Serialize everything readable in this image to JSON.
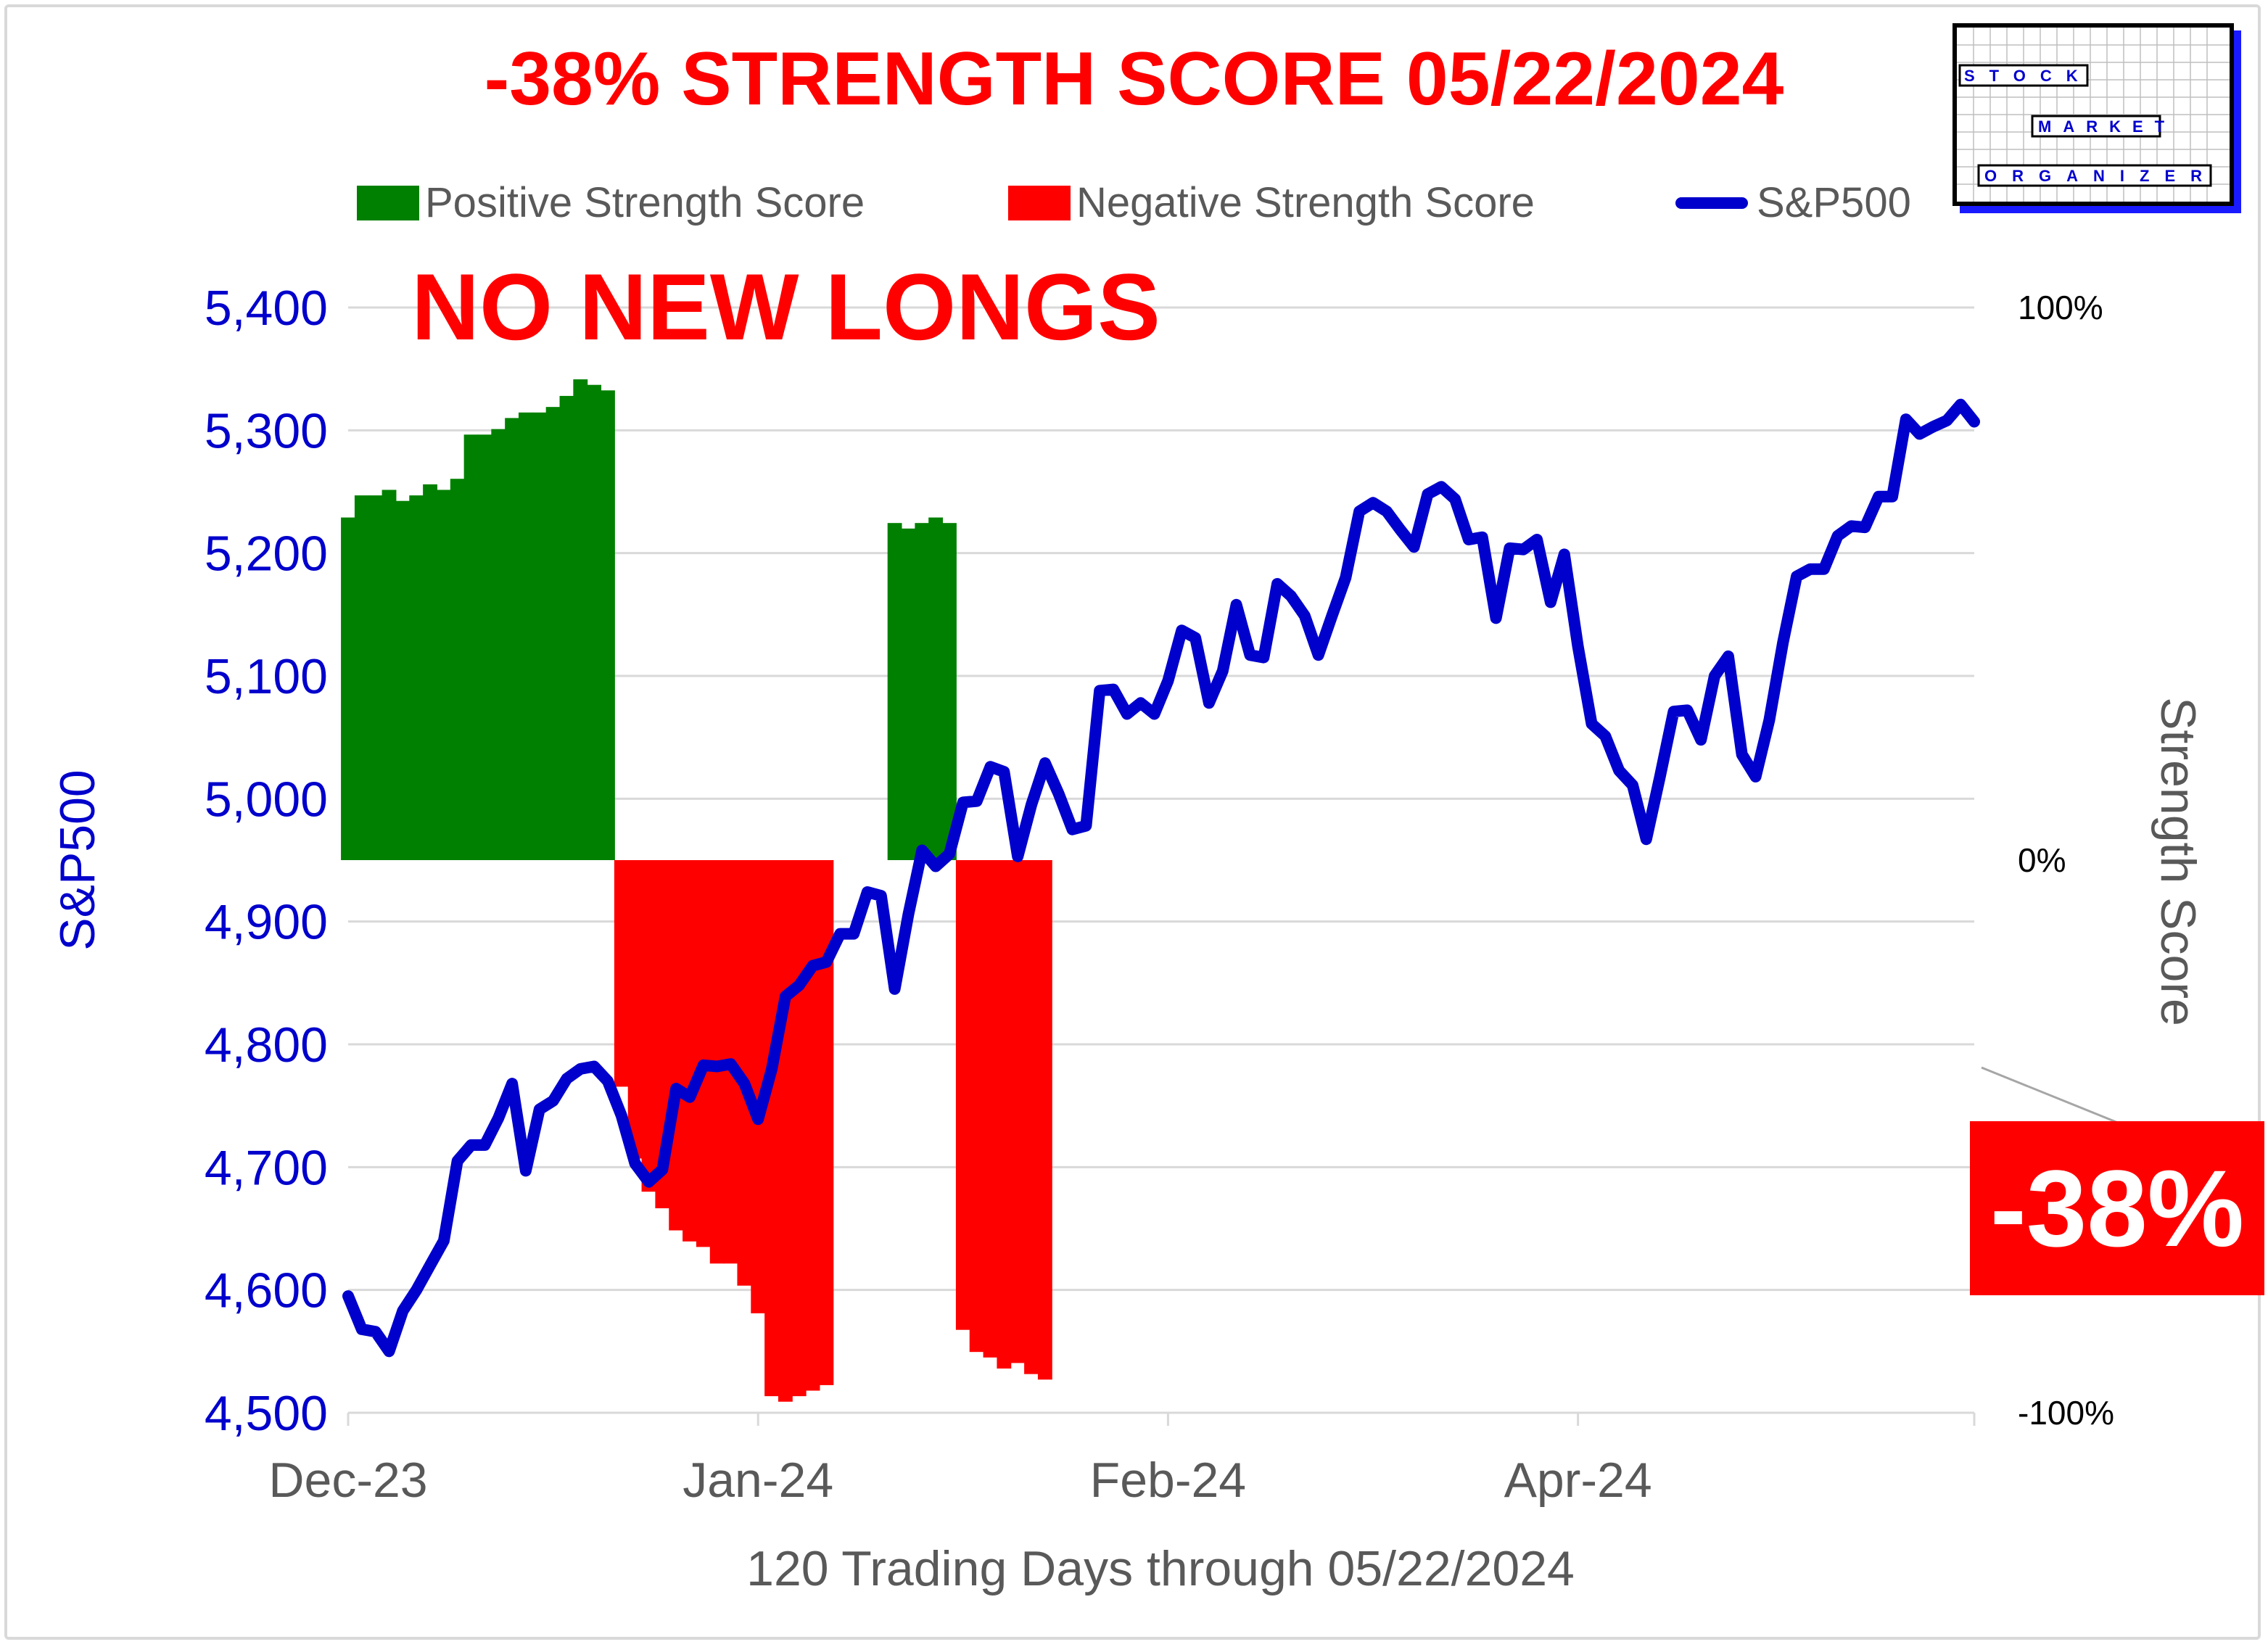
{
  "header": {
    "title": "-38% STRENGTH SCORE 05/22/2024",
    "subtitle": "NO NEW LONGS",
    "callout": "-38%"
  },
  "logo": {
    "lines": [
      "STOCK",
      "MARKET",
      "ORGANIZER"
    ]
  },
  "colors": {
    "positive": "#008000",
    "negative": "#ff0000",
    "sp500": "#0000cc",
    "title_red": "#ff0000",
    "axis_blue": "#0000cc",
    "axis_gray": "#595959"
  },
  "chart_data": {
    "type": "bar",
    "title": "-38% STRENGTH SCORE 05/22/2024",
    "xlabel": "120 Trading Days through 05/22/2024",
    "ylabel": "S&P500",
    "y2label": "Strength Score",
    "x_ticks": [
      "Dec-23",
      "Jan-24",
      "Feb-24",
      "Apr-24"
    ],
    "x_tick_index": [
      0,
      30,
      60,
      90
    ],
    "ylim": [
      4500,
      5400
    ],
    "y_ticks": [
      "4,500",
      "4,600",
      "4,700",
      "4,800",
      "4,900",
      "5,000",
      "5,100",
      "5,200",
      "5,300",
      "5,400"
    ],
    "y2lim": [
      -100,
      100
    ],
    "y2_ticks": [
      "-100%",
      "0%",
      "100%"
    ],
    "grid": true,
    "legend_position": "top",
    "series": [
      {
        "name": "Positive Strength Score",
        "kind": "bar",
        "values": [
          62,
          66,
          66,
          67,
          65,
          66,
          68,
          67,
          69,
          77,
          77,
          78,
          80,
          81,
          81,
          82,
          84,
          87,
          86,
          85,
          0,
          0,
          0,
          0,
          0,
          0,
          0,
          0,
          0,
          0,
          0,
          0,
          0,
          0,
          0,
          0,
          0,
          0,
          0,
          0,
          61,
          60,
          61,
          62,
          61,
          0,
          0,
          0,
          0,
          0,
          0,
          0,
          0,
          0,
          0,
          0,
          0,
          0,
          0,
          0,
          0,
          0,
          0,
          0,
          0,
          0,
          0,
          0,
          0,
          0,
          0,
          0,
          0,
          0,
          0,
          0,
          0,
          0,
          0,
          0,
          0,
          0,
          0,
          0,
          0,
          0,
          0,
          0,
          0,
          0,
          0,
          0,
          0,
          0,
          0,
          0,
          0,
          0,
          0,
          0,
          0,
          0,
          0,
          0,
          0,
          0,
          0,
          0,
          0,
          0,
          0,
          0,
          0,
          0,
          0,
          0,
          0,
          0,
          0,
          0
        ]
      },
      {
        "name": "Negative Strength Score",
        "kind": "bar",
        "values": [
          0,
          0,
          0,
          0,
          0,
          0,
          0,
          0,
          0,
          0,
          0,
          0,
          0,
          0,
          0,
          0,
          0,
          0,
          0,
          0,
          -41,
          -54,
          -60,
          -63,
          -67,
          -69,
          -70,
          -73,
          -73,
          -77,
          -82,
          -97,
          -98,
          -97,
          -96,
          -95,
          0,
          0,
          0,
          0,
          0,
          0,
          0,
          0,
          0,
          -85,
          -89,
          -90,
          -92,
          -91,
          -93,
          -94,
          0,
          0,
          0,
          0,
          0,
          0,
          0,
          0,
          0,
          0,
          0,
          0,
          0,
          0,
          0,
          0,
          0,
          0,
          0,
          0,
          0,
          0,
          0,
          0,
          0,
          0,
          0,
          0,
          0,
          0,
          0,
          0,
          0,
          0,
          0,
          0,
          0,
          0,
          0,
          0,
          0,
          0,
          0,
          0,
          0,
          0,
          0,
          0,
          0,
          0,
          0,
          0,
          0,
          0,
          0,
          0,
          0,
          0,
          0,
          0,
          0,
          0,
          0,
          0,
          0,
          0,
          0,
          0,
          0,
          0
        ]
      },
      {
        "name": "S&P500",
        "kind": "line",
        "values": [
          4595,
          4568,
          4566,
          4550,
          4583,
          4600,
          4620,
          4640,
          4705,
          4718,
          4718,
          4740,
          4768,
          4697,
          4747,
          4754,
          4772,
          4780,
          4782,
          4770,
          4742,
          4703,
          4688,
          4698,
          4764,
          4757,
          4783,
          4782,
          4784,
          4768,
          4739,
          4780,
          4839,
          4848,
          4864,
          4867,
          4890,
          4890,
          4924,
          4921,
          4845,
          4906,
          4958,
          4945,
          4955,
          4997,
          4998,
          5026,
          5022,
          4953,
          4995,
          5029,
          5004,
          4975,
          4978,
          5088,
          5089,
          5069,
          5078,
          5069,
          5096,
          5137,
          5131,
          5078,
          5104,
          5158,
          5117,
          5115,
          5175,
          5165,
          5149,
          5117,
          5149,
          5180,
          5234,
          5241,
          5234,
          5219,
          5205,
          5248,
          5254,
          5244,
          5211,
          5213,
          5147,
          5204,
          5203,
          5211,
          5160,
          5199,
          5124,
          5061,
          5051,
          5023,
          5011,
          4967,
          5018,
          5071,
          5072,
          5048,
          5100,
          5116,
          5036,
          5018,
          5064,
          5127,
          5181,
          5187,
          5187,
          5214,
          5222,
          5221,
          5246,
          5246,
          5309,
          5297,
          5303,
          5308,
          5321,
          5307
        ]
      }
    ]
  }
}
